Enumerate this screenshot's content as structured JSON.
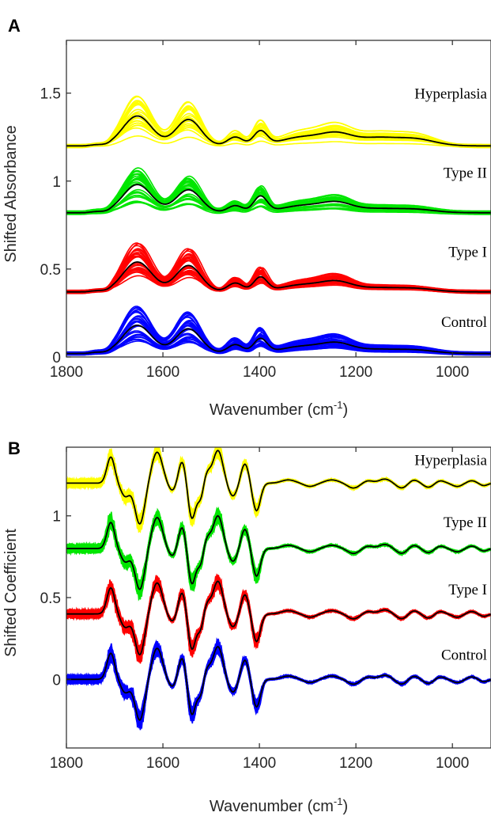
{
  "chart_data": [
    {
      "type": "line",
      "panel_label": "A",
      "xlabel": "Wavenumber (cm",
      "xlabel_sup": "-1",
      "xlabel_close": ")",
      "ylabel": "Shifted Absorbance",
      "xlim": [
        1800,
        920
      ],
      "ylim": [
        0,
        1.8
      ],
      "x_reversed": true,
      "xticks": [
        1800,
        1600,
        1400,
        1200,
        1000
      ],
      "yticks": [
        {
          "value": 0,
          "label": "0"
        },
        {
          "value": 0.5,
          "label": "0.5"
        },
        {
          "value": 1,
          "label": "1"
        },
        {
          "value": 1.5,
          "label": "1.5"
        }
      ],
      "grid": false,
      "series": [
        {
          "name": "Hyperplasia",
          "color": "#ffff00",
          "offset": 1.2,
          "label_x": 1500,
          "label_y": 1.47,
          "peaks": [
            [
              1740,
              0.01,
              12
            ],
            [
              1653,
              0.17,
              30
            ],
            [
              1547,
              0.15,
              26
            ],
            [
              1450,
              0.05,
              16
            ],
            [
              1398,
              0.08,
              14
            ],
            [
              1310,
              0.05,
              45
            ],
            [
              1238,
              0.06,
              32
            ],
            [
              1160,
              0.04,
              38
            ],
            [
              1080,
              0.04,
              42
            ]
          ]
        },
        {
          "name": "Type II",
          "color": "#00e600",
          "offset": 0.82,
          "label_x": 1500,
          "label_y": 1.02,
          "peaks": [
            [
              1740,
              0.01,
              12
            ],
            [
              1653,
              0.16,
              30
            ],
            [
              1547,
              0.13,
              26
            ],
            [
              1450,
              0.04,
              16
            ],
            [
              1398,
              0.09,
              14
            ],
            [
              1310,
              0.04,
              45
            ],
            [
              1238,
              0.05,
              32
            ],
            [
              1160,
              0.02,
              38
            ],
            [
              1080,
              0.02,
              42
            ]
          ]
        },
        {
          "name": "Type I",
          "color": "#ff0000",
          "offset": 0.37,
          "label_x": 1500,
          "label_y": 0.57,
          "peaks": [
            [
              1740,
              0.01,
              12
            ],
            [
              1653,
              0.17,
              30
            ],
            [
              1547,
              0.15,
              26
            ],
            [
              1450,
              0.05,
              16
            ],
            [
              1398,
              0.08,
              14
            ],
            [
              1310,
              0.04,
              45
            ],
            [
              1238,
              0.05,
              32
            ],
            [
              1160,
              0.02,
              38
            ],
            [
              1080,
              0.02,
              42
            ]
          ]
        },
        {
          "name": "Control",
          "color": "#0000ff",
          "offset": 0.02,
          "label_x": 1500,
          "label_y": 0.17,
          "peaks": [
            [
              1740,
              0.01,
              12
            ],
            [
              1653,
              0.16,
              30
            ],
            [
              1547,
              0.14,
              26
            ],
            [
              1450,
              0.05,
              16
            ],
            [
              1398,
              0.08,
              14
            ],
            [
              1310,
              0.04,
              45
            ],
            [
              1238,
              0.05,
              32
            ],
            [
              1160,
              0.02,
              38
            ],
            [
              1080,
              0.02,
              42
            ]
          ]
        }
      ]
    },
    {
      "type": "line",
      "panel_label": "B",
      "xlabel": "Wavenumber (cm",
      "xlabel_sup": "-1",
      "xlabel_close": ")",
      "ylabel": "Shifted Coefficient",
      "xlim": [
        1800,
        920
      ],
      "ylim": [
        -0.42,
        1.42
      ],
      "x_reversed": true,
      "xticks": [
        1800,
        1600,
        1400,
        1200,
        1000
      ],
      "yticks": [
        {
          "value": 0,
          "label": "0"
        },
        {
          "value": 0.5,
          "label": "0.5"
        },
        {
          "value": 1,
          "label": "1"
        }
      ],
      "grid": false,
      "series": [
        {
          "name": "Hyperplasia",
          "color": "#ffff00",
          "offset": 1.2,
          "label_x": 1500,
          "label_y": 1.31
        },
        {
          "name": "Type II",
          "color": "#00e600",
          "offset": 0.8,
          "label_x": 1500,
          "label_y": 0.93
        },
        {
          "name": "Type I",
          "color": "#ff0000",
          "offset": 0.4,
          "label_x": 1500,
          "label_y": 0.52
        },
        {
          "name": "Control",
          "color": "#0000ff",
          "offset": 0.0,
          "label_x": 1500,
          "label_y": 0.12
        }
      ],
      "features": [
        [
          1708,
          0.16,
          8
        ],
        [
          1678,
          -0.08,
          9
        ],
        [
          1648,
          -0.25,
          10
        ],
        [
          1612,
          0.19,
          11
        ],
        [
          1580,
          -0.05,
          9
        ],
        [
          1560,
          0.14,
          8
        ],
        [
          1540,
          -0.22,
          8
        ],
        [
          1522,
          -0.09,
          6
        ],
        [
          1508,
          0.06,
          7
        ],
        [
          1486,
          0.2,
          10
        ],
        [
          1455,
          -0.08,
          9
        ],
        [
          1430,
          0.12,
          8
        ],
        [
          1406,
          -0.17,
          8
        ],
        [
          1340,
          0.02,
          14
        ],
        [
          1295,
          -0.02,
          12
        ],
        [
          1250,
          0.02,
          14
        ],
        [
          1205,
          -0.03,
          12
        ],
        [
          1175,
          0.015,
          10
        ],
        [
          1140,
          0.025,
          12
        ],
        [
          1105,
          -0.03,
          11
        ],
        [
          1080,
          0.02,
          10
        ],
        [
          1050,
          -0.025,
          10
        ],
        [
          1025,
          0.015,
          9
        ],
        [
          990,
          -0.02,
          10
        ],
        [
          960,
          0.015,
          9
        ],
        [
          935,
          -0.015,
          8
        ]
      ]
    }
  ]
}
